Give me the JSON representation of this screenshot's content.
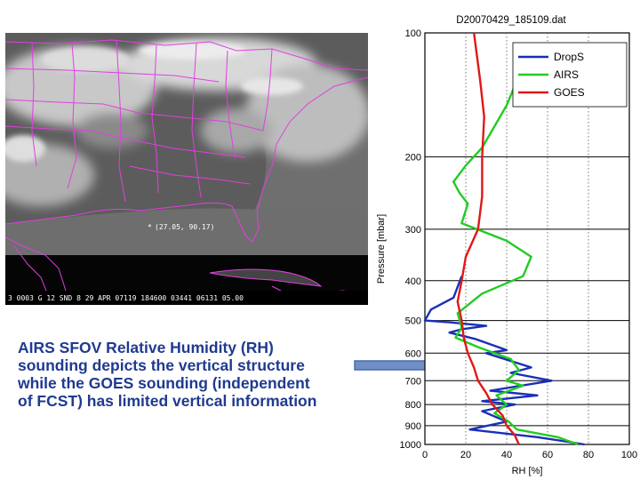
{
  "satellite": {
    "marker_label": "(27.05, 90.17)",
    "footer_text": "3 0003 G 12 SND   8 29 APR 07119 184600 03441 06131 05.00",
    "border_color": "#e040e0"
  },
  "caption": {
    "lines": [
      "AIRS SFOV Relative Humidity (RH)",
      "sounding depicts the vertical structure",
      "while the GOES sounding (independent",
      "of FCST) has limited vertical information"
    ],
    "color": "#1f3a8f"
  },
  "arrow": {
    "color": "#6f8fc6"
  },
  "chart_data": {
    "type": "line",
    "title": "D20070429_185109.dat",
    "xlabel": "RH [%]",
    "ylabel": "Pressure [mbar]",
    "xlim": [
      0,
      100
    ],
    "ylim": [
      1000,
      100
    ],
    "yscale": "log",
    "xticks": [
      "0",
      "20",
      "40",
      "60",
      "80",
      "100"
    ],
    "yticks": [
      "100",
      "200",
      "300",
      "400",
      "500",
      "600",
      "700",
      "800",
      "900",
      "1000"
    ],
    "grid": "dotted",
    "legend_position": "top-right",
    "series": [
      {
        "name": "DropS",
        "color": "#1a2fb8",
        "points": [
          [
            18,
            390
          ],
          [
            14,
            440
          ],
          [
            3,
            470
          ],
          [
            0,
            500
          ],
          [
            12,
            505
          ],
          [
            30,
            515
          ],
          [
            18,
            525
          ],
          [
            12,
            535
          ],
          [
            25,
            555
          ],
          [
            40,
            590
          ],
          [
            30,
            600
          ],
          [
            52,
            650
          ],
          [
            42,
            670
          ],
          [
            62,
            700
          ],
          [
            32,
            740
          ],
          [
            55,
            760
          ],
          [
            28,
            785
          ],
          [
            44,
            800
          ],
          [
            28,
            830
          ],
          [
            40,
            880
          ],
          [
            22,
            920
          ],
          [
            55,
            960
          ],
          [
            70,
            985
          ],
          [
            78,
            1000
          ]
        ]
      },
      {
        "name": "AIRS",
        "color": "#22cc22",
        "points": [
          [
            48,
            120
          ],
          [
            40,
            150
          ],
          [
            28,
            190
          ],
          [
            20,
            210
          ],
          [
            14,
            230
          ],
          [
            17,
            245
          ],
          [
            21,
            260
          ],
          [
            18,
            290
          ],
          [
            40,
            320
          ],
          [
            52,
            350
          ],
          [
            48,
            390
          ],
          [
            28,
            430
          ],
          [
            16,
            480
          ],
          [
            18,
            520
          ],
          [
            15,
            550
          ],
          [
            26,
            580
          ],
          [
            42,
            620
          ],
          [
            46,
            660
          ],
          [
            40,
            700
          ],
          [
            48,
            720
          ],
          [
            35,
            760
          ],
          [
            40,
            800
          ],
          [
            34,
            840
          ],
          [
            41,
            880
          ],
          [
            45,
            920
          ],
          [
            65,
            960
          ],
          [
            75,
            1000
          ]
        ]
      },
      {
        "name": "GOES",
        "color": "#e01818",
        "points": [
          [
            24,
            100
          ],
          [
            27,
            130
          ],
          [
            29,
            160
          ],
          [
            28,
            200
          ],
          [
            28,
            250
          ],
          [
            26,
            300
          ],
          [
            20,
            350
          ],
          [
            18,
            400
          ],
          [
            16,
            450
          ],
          [
            18,
            500
          ],
          [
            19,
            550
          ],
          [
            21,
            600
          ],
          [
            24,
            650
          ],
          [
            26,
            700
          ],
          [
            30,
            750
          ],
          [
            33,
            800
          ],
          [
            38,
            850
          ],
          [
            40,
            900
          ],
          [
            44,
            950
          ],
          [
            46,
            1000
          ]
        ]
      }
    ]
  }
}
